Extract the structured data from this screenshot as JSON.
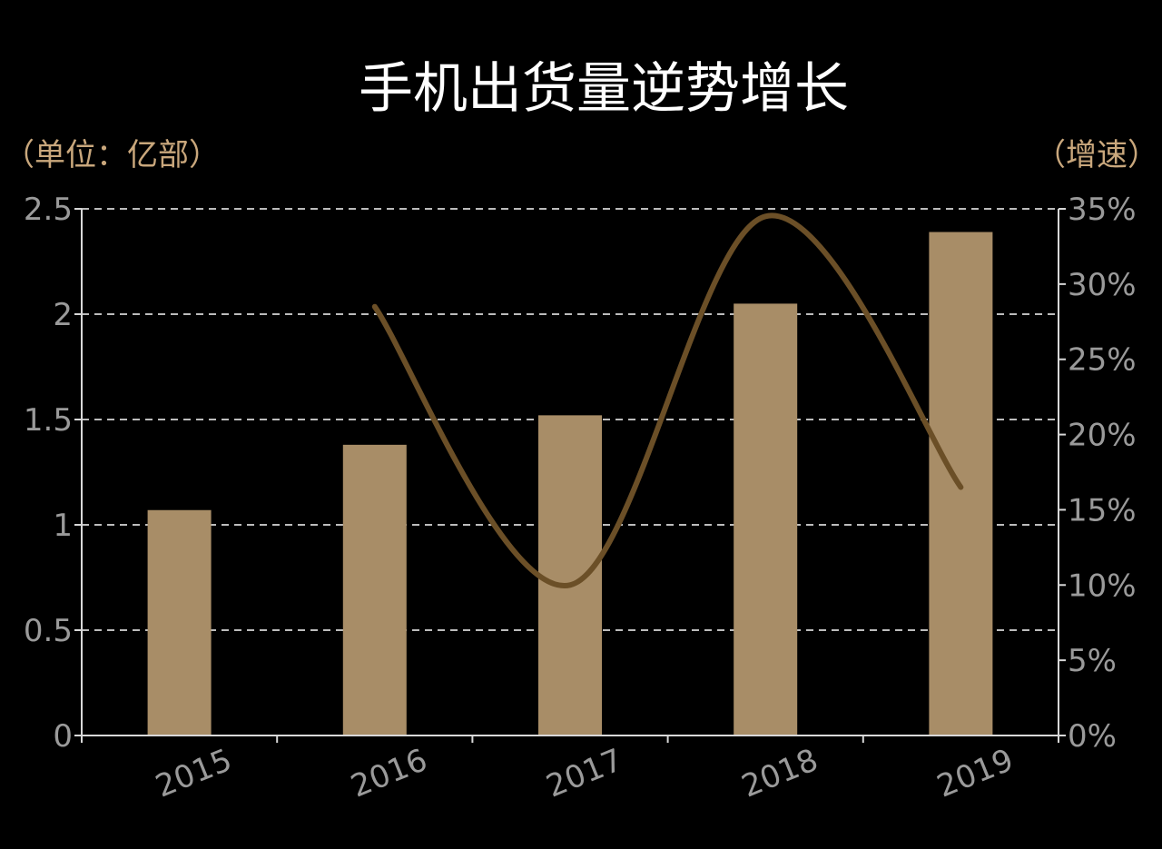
{
  "chart_data": {
    "type": "bar",
    "title": "手机出货量逆势增长",
    "left_unit": "（单位：亿部）",
    "right_unit": "（增速）",
    "categories": [
      "2015",
      "2016",
      "2017",
      "2018",
      "2019"
    ],
    "series": [
      {
        "type": "bar",
        "axis": "left",
        "values": [
          1.07,
          1.38,
          1.52,
          2.05,
          2.39
        ]
      },
      {
        "type": "line",
        "axis": "right",
        "values": [
          null,
          0.285,
          0.1,
          0.345,
          0.165
        ]
      }
    ],
    "y_left": {
      "min": 0,
      "max": 2.5,
      "ticks": [
        "0",
        "0.5",
        "1",
        "1.5",
        "2",
        "2.5"
      ]
    },
    "y_right": {
      "min": 0,
      "max": 0.35,
      "ticks": [
        "0%",
        "5%",
        "10%",
        "15%",
        "20%",
        "25%",
        "30%",
        "35%"
      ]
    },
    "grid": true,
    "colors": {
      "bar": "#a88d67",
      "line": "#6b4f27",
      "grid": "#bcbcbc",
      "axis": "#d8d8d8",
      "tick_text": "#9a9a9a",
      "unit_text": "#c9a77c",
      "title_text": "#ffffff",
      "background": "#000000"
    }
  }
}
